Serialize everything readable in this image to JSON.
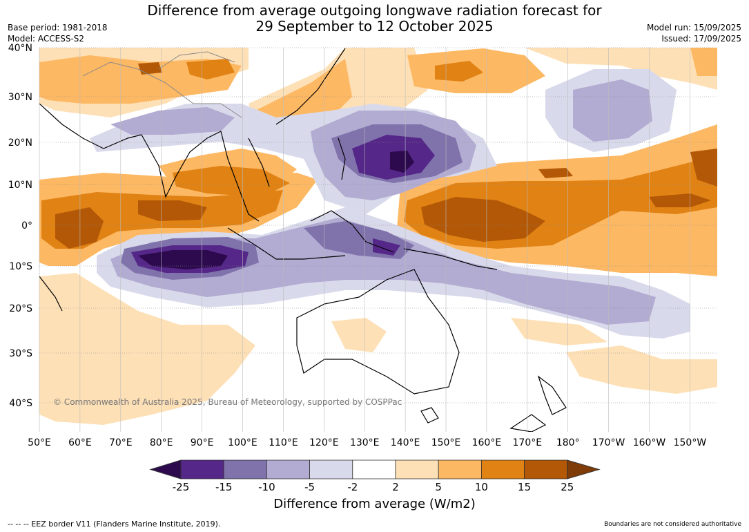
{
  "header": {
    "title_line1": "Difference from average outgoing longwave radiation forecast for",
    "title_line2": "29 September to 12 October 2025",
    "base_period": "Base period: 1981-2018",
    "model": "Model: ACCESS-S2",
    "model_run": "Model run: 15/09/2025",
    "issued": "Issued: 17/09/2025"
  },
  "map": {
    "lat_labels": [
      "40°N",
      "30°N",
      "20°N",
      "10°N",
      "0°",
      "10°S",
      "20°S",
      "30°S",
      "40°S"
    ],
    "lon_labels": [
      "50°E",
      "60°E",
      "70°E",
      "80°E",
      "90°E",
      "100°E",
      "110°E",
      "120°E",
      "130°E",
      "140°E",
      "150°E",
      "160°E",
      "170°E",
      "180°",
      "170°W",
      "160°W",
      "150°W"
    ],
    "copyright": "© Commonwealth of Australia 2025, Bureau of Meteorology, supported by COSPPac"
  },
  "colorbar": {
    "tick_labels": [
      "-25",
      "-15",
      "-10",
      "-5",
      "-2",
      "2",
      "5",
      "10",
      "15",
      "25"
    ],
    "colors": [
      "#2d0a4e",
      "#542788",
      "#8073ac",
      "#b2abd2",
      "#d8daeb",
      "#ffffff",
      "#fee0b6",
      "#fdb863",
      "#e08214",
      "#b35806",
      "#7f3b08"
    ],
    "label": "Difference from average (W/m2)"
  },
  "footer": {
    "eez_note": "--  --  -- EEZ border V11 (Flanders Marine Institute, 2019).",
    "boundaries_note": "Boundaries are not considered authoritative"
  }
}
